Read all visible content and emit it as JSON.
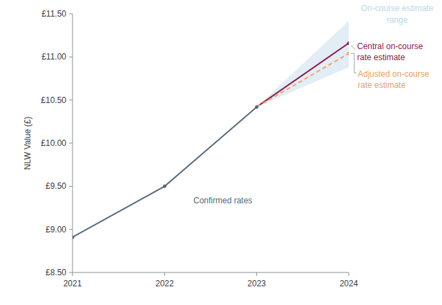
{
  "chart_data": {
    "type": "line",
    "y_label": "NLW Value (£)",
    "x": [
      2021,
      2022,
      2023,
      2024
    ],
    "xlim": [
      2021,
      2024
    ],
    "xticks": [
      2021,
      2022,
      2023,
      2024
    ],
    "ylim": [
      8.5,
      11.5
    ],
    "yticks": [
      {
        "value": 8.5,
        "label": "£8.50"
      },
      {
        "value": 9.0,
        "label": "£9.00"
      },
      {
        "value": 9.5,
        "label": "£9.50"
      },
      {
        "value": 10.0,
        "label": "£10.00"
      },
      {
        "value": 10.5,
        "label": "£10.50"
      },
      {
        "value": 11.0,
        "label": "£11.00"
      },
      {
        "value": 11.5,
        "label": "£11.50"
      }
    ],
    "grid": false,
    "series": [
      {
        "name": "Confirmed rates",
        "color": "#56697a",
        "marker": "circle",
        "line_style": "solid",
        "values": [
          8.91,
          9.5,
          10.42,
          null
        ]
      },
      {
        "name": "Central on-course\nrate estimate",
        "color": "#8a1c4c",
        "marker": "circle",
        "line_style": "solid",
        "values": [
          null,
          null,
          10.42,
          11.16
        ]
      },
      {
        "name": "Adjusted on-course\nrate estimate",
        "color": "#f0a464",
        "marker": "circle",
        "line_style": "dashed",
        "values": [
          null,
          null,
          10.42,
          11.04
        ]
      },
      {
        "name": "On-course estimate\nrange",
        "color": "#e3edf6",
        "type": "area",
        "lower": [
          null,
          null,
          10.42,
          10.88
        ],
        "upper": [
          null,
          null,
          10.42,
          11.42
        ]
      }
    ]
  }
}
